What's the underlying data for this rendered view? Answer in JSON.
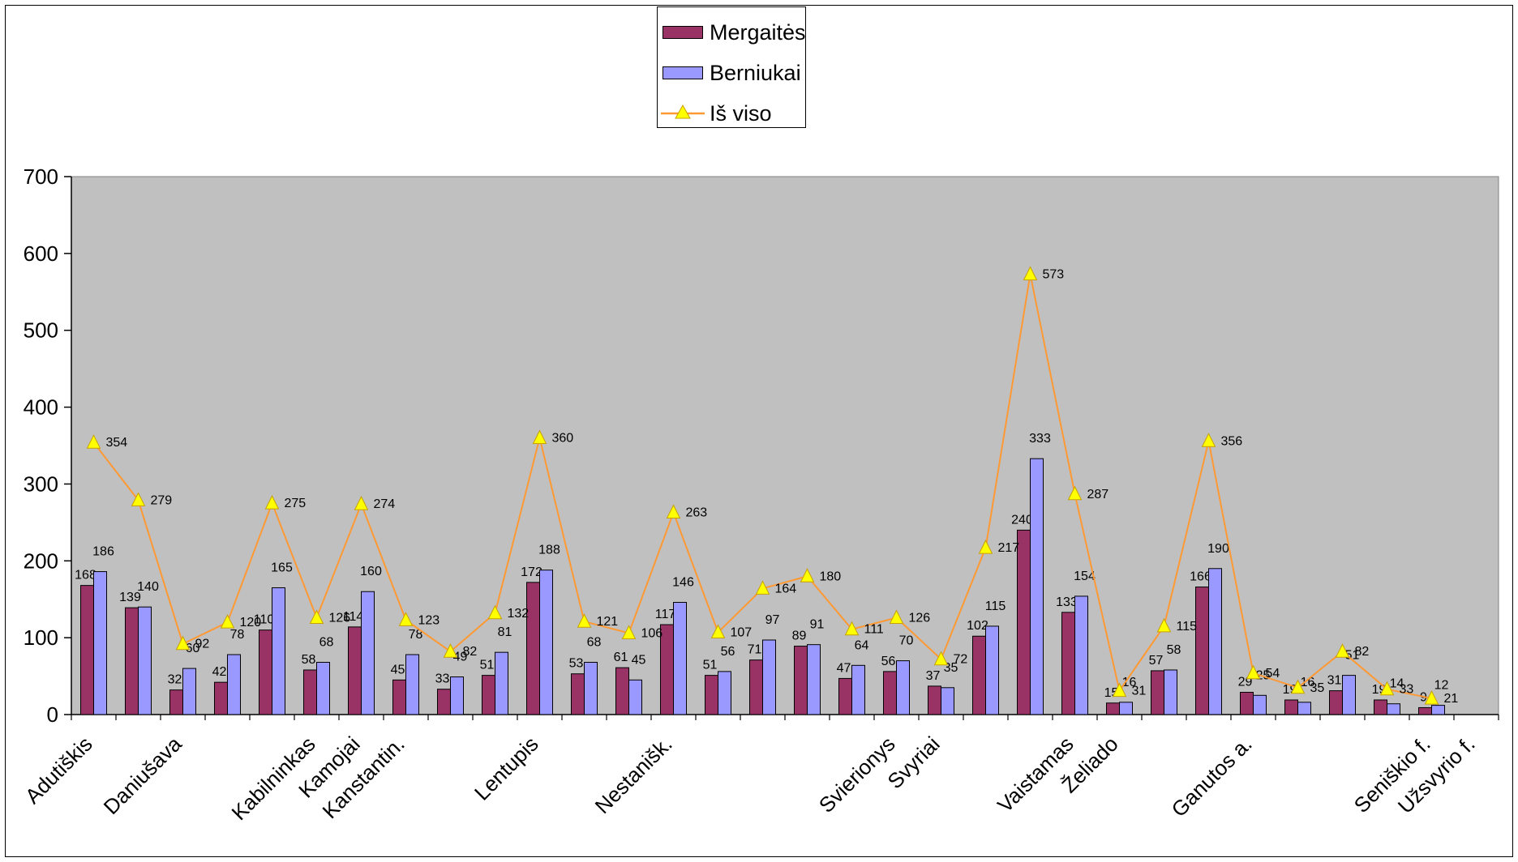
{
  "chart_data": {
    "type": "bar",
    "title": "",
    "xlabel": "",
    "ylabel": "",
    "ylim": [
      0,
      700
    ],
    "yticks": [
      0,
      100,
      200,
      300,
      400,
      500,
      600,
      700
    ],
    "grid": false,
    "plot_background": "#c0c0c0",
    "legend_position": "top-center",
    "categories": [
      "Adutiškis",
      "",
      "Daniušava",
      "",
      "",
      "Kabilninkas",
      "Kamojai",
      "Kanstantin.",
      "",
      "",
      "Lentupis",
      "",
      "",
      "Nestanišk.",
      "",
      "",
      "",
      "",
      "Svierionys",
      "Svyriai",
      "",
      "",
      "Vaistamas",
      "Želiado",
      "",
      "",
      "Ganutos a.",
      "",
      "",
      "",
      "Seniškio f.",
      "Užsvyrio f."
    ],
    "series": [
      {
        "name": "Mergaitės",
        "kind": "bar",
        "color": "#993366",
        "values": [
          168,
          139,
          32,
          42,
          110,
          58,
          114,
          45,
          33,
          51,
          172,
          53,
          61,
          117,
          51,
          71,
          89,
          47,
          56,
          37,
          102,
          240,
          133,
          15,
          57,
          166,
          29,
          19,
          31,
          19,
          9,
          null
        ]
      },
      {
        "name": "Berniukai",
        "kind": "bar",
        "color": "#9999ff",
        "values": [
          186,
          140,
          60,
          78,
          165,
          68,
          160,
          78,
          49,
          81,
          188,
          68,
          45,
          146,
          56,
          97,
          91,
          64,
          70,
          35,
          115,
          333,
          154,
          16,
          58,
          190,
          25,
          16,
          51,
          14,
          12,
          null
        ]
      },
      {
        "name": "Iš viso",
        "kind": "line",
        "color": "#ff9933",
        "marker_color": "#ffff00",
        "values": [
          354,
          279,
          92,
          120,
          275,
          126,
          274,
          123,
          82,
          132,
          360,
          121,
          106,
          263,
          107,
          164,
          180,
          111,
          126,
          72,
          217,
          573,
          287,
          31,
          115,
          356,
          54,
          35,
          82,
          33,
          21,
          null
        ]
      }
    ]
  }
}
